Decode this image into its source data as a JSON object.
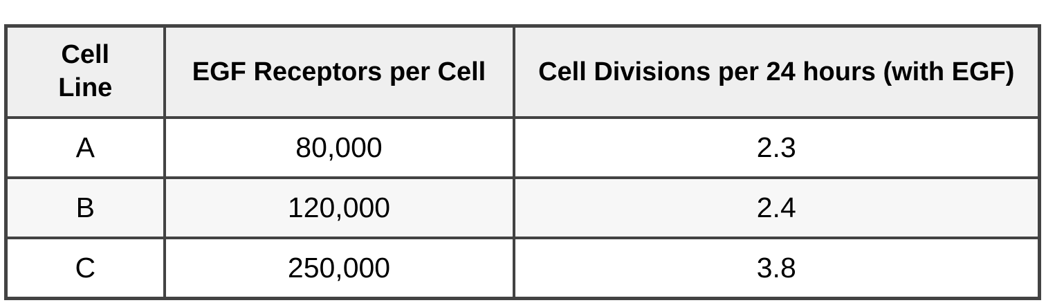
{
  "colors": {
    "border": "#434343",
    "header_bg": "#efefef",
    "alt_row_bg": "#f7f7f7",
    "text": "#000000",
    "page_bg": "#ffffff"
  },
  "table": {
    "headers": [
      "Cell Line",
      "EGF Receptors per Cell",
      "Cell Divisions per 24 hours (with EGF)"
    ],
    "rows": [
      [
        "A",
        "80,000",
        "2.3"
      ],
      [
        "B",
        "120,000",
        "2.4"
      ],
      [
        "C",
        "250,000",
        "3.8"
      ]
    ]
  },
  "chart_data": {
    "type": "table",
    "title": "",
    "columns": [
      "Cell Line",
      "EGF Receptors per Cell",
      "Cell Divisions per 24 hours (with EGF)"
    ],
    "rows": [
      {
        "cell_line": "A",
        "egf_receptors_per_cell": 80000,
        "cell_divisions_per_24_hours_with_egf": 2.3
      },
      {
        "cell_line": "B",
        "egf_receptors_per_cell": 120000,
        "cell_divisions_per_24_hours_with_egf": 2.4
      },
      {
        "cell_line": "C",
        "egf_receptors_per_cell": 250000,
        "cell_divisions_per_24_hours_with_egf": 3.8
      }
    ],
    "layout_hints": {
      "header_background": "#efefef",
      "alternating_row_shading": [
        null,
        "#f7f7f7",
        null
      ],
      "grid": "on",
      "cell_alignment": "center"
    }
  }
}
